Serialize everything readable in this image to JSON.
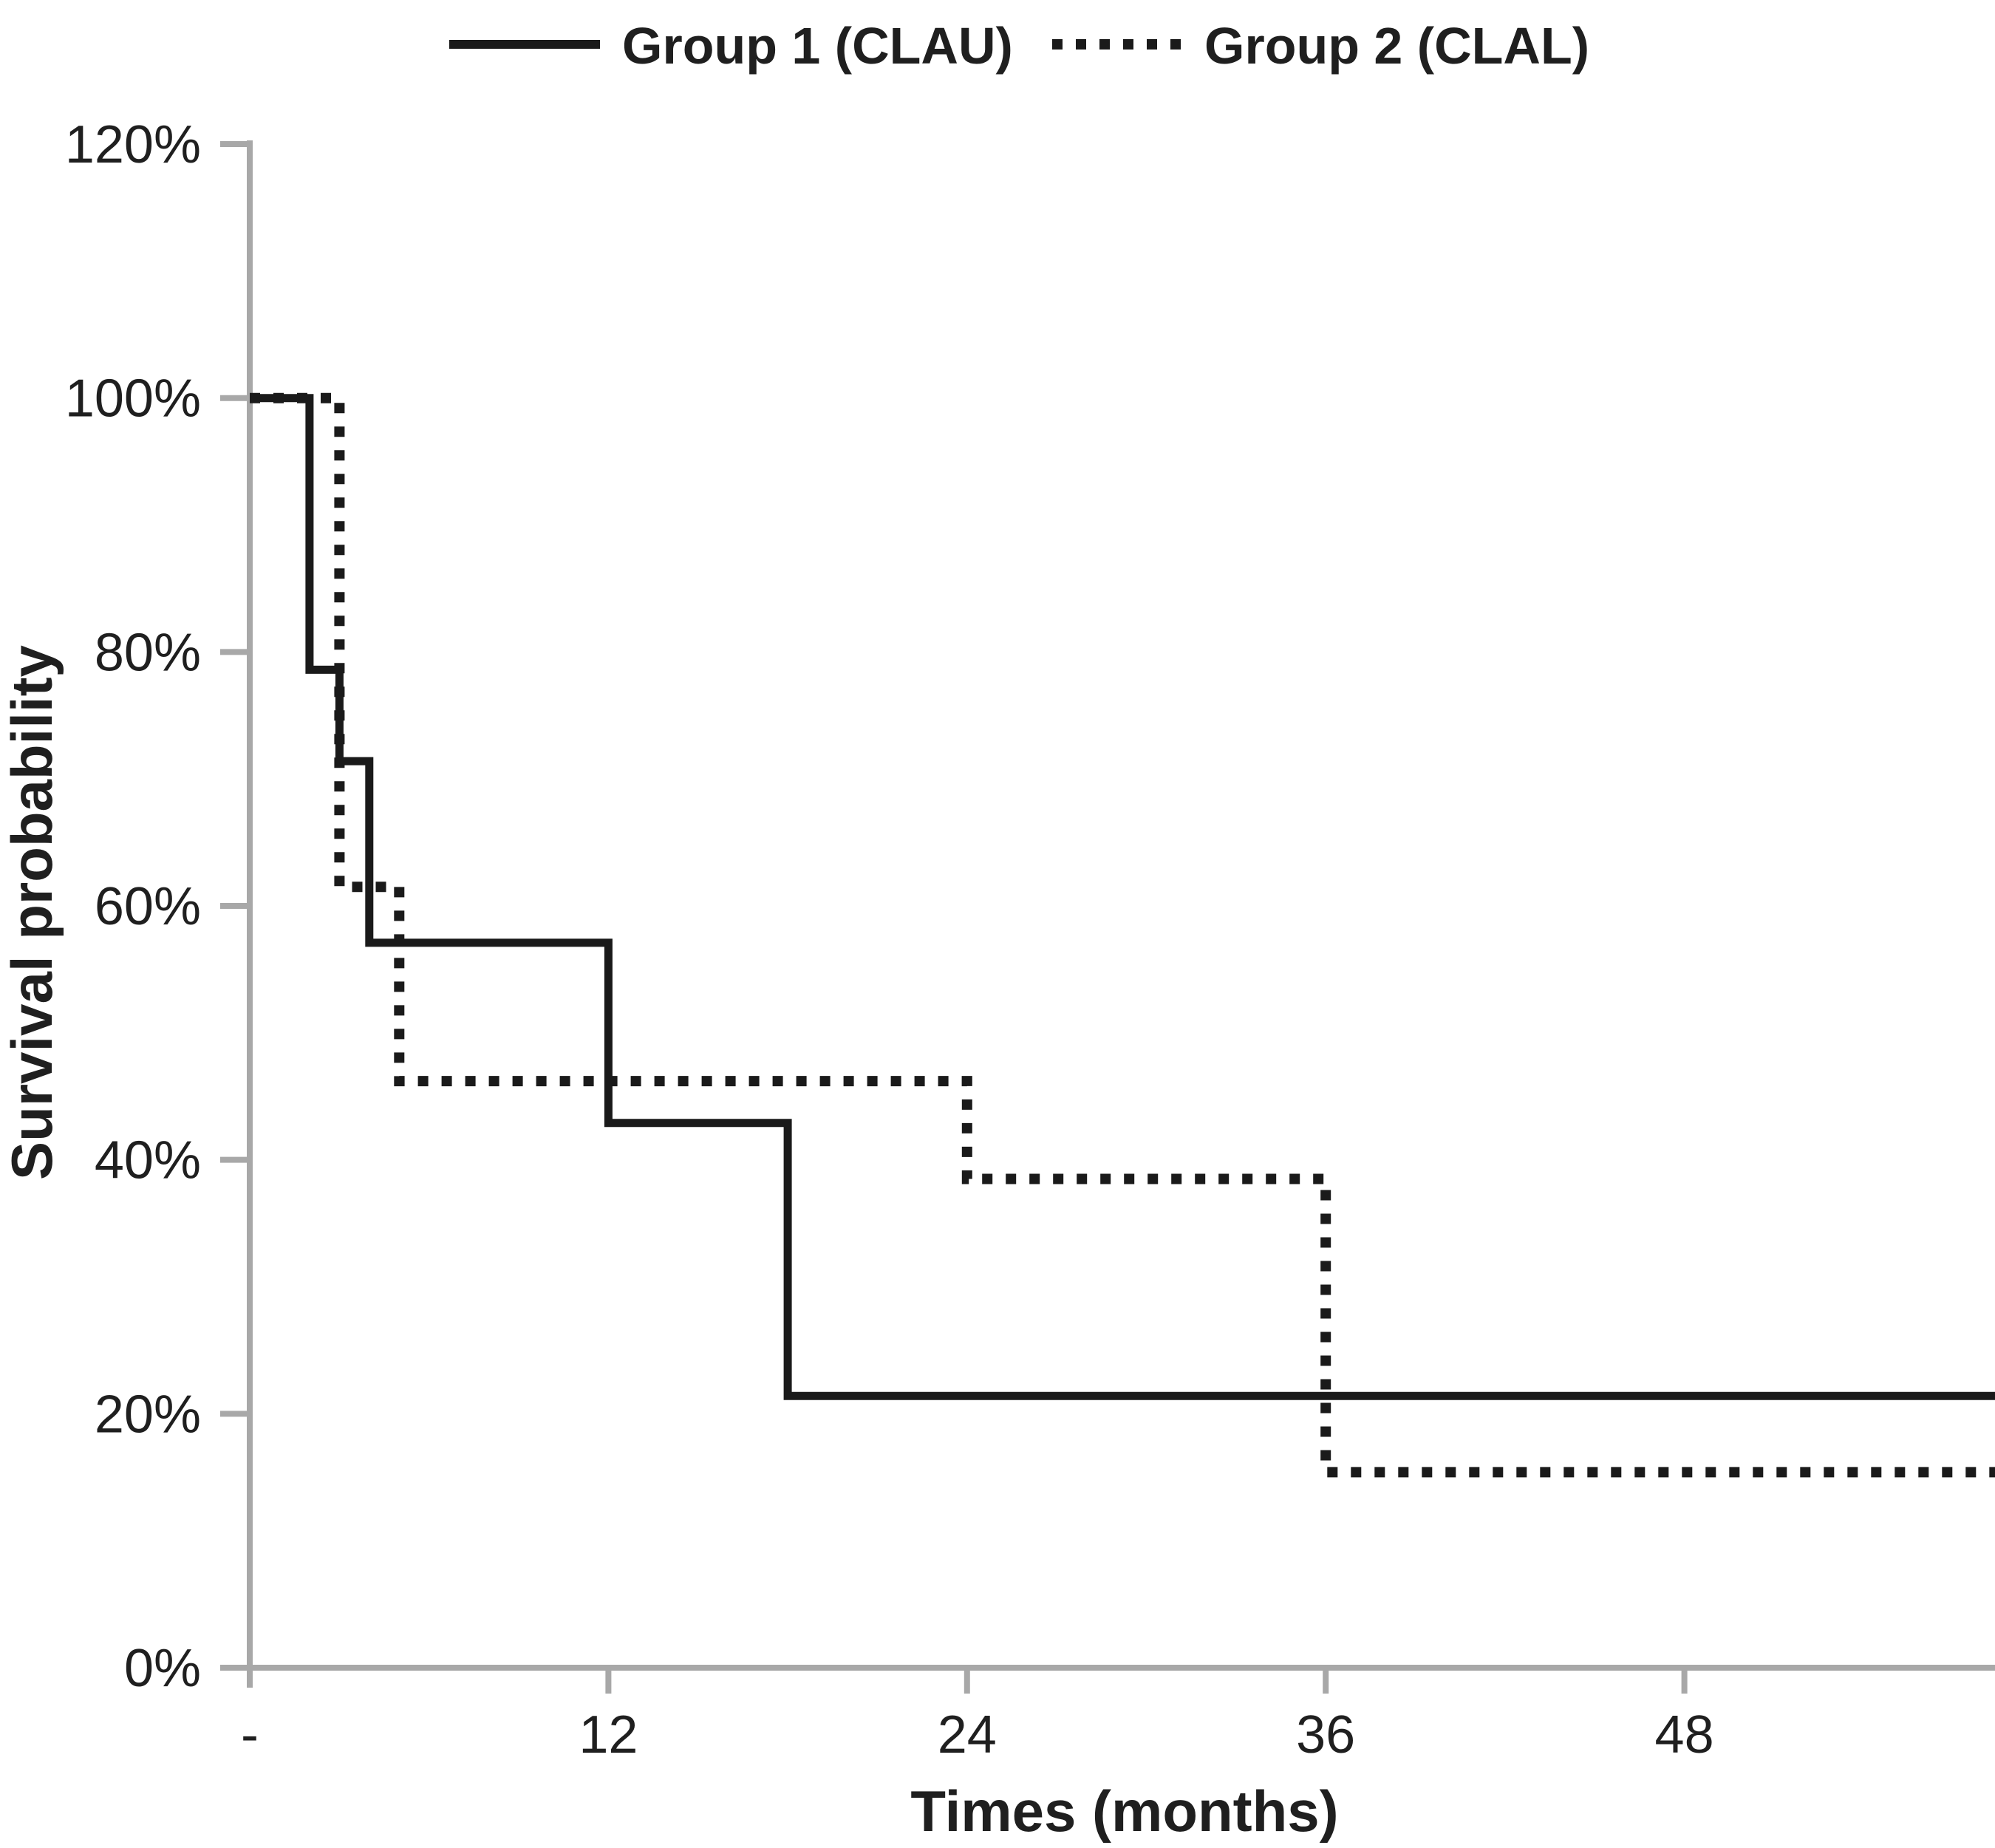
{
  "axes": {
    "x_title": "Times (months)",
    "y_title": "Survival probability"
  },
  "colors": {
    "series_line": "#1a1a1a",
    "axis_line": "#a8a8a8",
    "text": "#1f1f1f"
  },
  "chart_data": {
    "type": "line",
    "subtype": "kaplan-meier-step",
    "title": "",
    "xlabel": "Times (months)",
    "ylabel": "Survival probability",
    "xlim": [
      0,
      58.4
    ],
    "ylim": [
      0,
      120
    ],
    "grid": false,
    "legend_position": "top",
    "x_ticks": [
      {
        "value": 0,
        "label": "-"
      },
      {
        "value": 12,
        "label": "12"
      },
      {
        "value": 24,
        "label": "24"
      },
      {
        "value": 36,
        "label": "36"
      },
      {
        "value": 48,
        "label": "48"
      }
    ],
    "y_ticks": [
      {
        "value": 120,
        "label": "120%"
      },
      {
        "value": 100,
        "label": "100%"
      },
      {
        "value": 80,
        "label": "80%"
      },
      {
        "value": 60,
        "label": "60%"
      },
      {
        "value": 40,
        "label": "40%"
      },
      {
        "value": 20,
        "label": "20%"
      },
      {
        "value": 0,
        "label": "0%"
      }
    ],
    "series": [
      {
        "name": "Group 1 (CLAU)",
        "style": "solid",
        "color": "#1a1a1a",
        "points": [
          [
            0,
            100
          ],
          [
            2,
            100
          ],
          [
            2,
            78.6
          ],
          [
            3,
            78.6
          ],
          [
            3,
            71.4
          ],
          [
            4,
            71.4
          ],
          [
            4,
            57.1
          ],
          [
            12,
            57.1
          ],
          [
            12,
            42.9
          ],
          [
            18,
            42.9
          ],
          [
            18,
            21.4
          ],
          [
            58.4,
            21.4
          ]
        ]
      },
      {
        "name": "Group 2 (CLAL)",
        "style": "dotted",
        "color": "#1a1a1a",
        "points": [
          [
            0,
            100
          ],
          [
            3,
            100
          ],
          [
            3,
            61.5
          ],
          [
            5,
            61.5
          ],
          [
            5,
            46.2
          ],
          [
            24,
            46.2
          ],
          [
            24,
            38.5
          ],
          [
            36,
            38.5
          ],
          [
            36,
            15.4
          ],
          [
            58.4,
            15.4
          ]
        ]
      }
    ]
  }
}
